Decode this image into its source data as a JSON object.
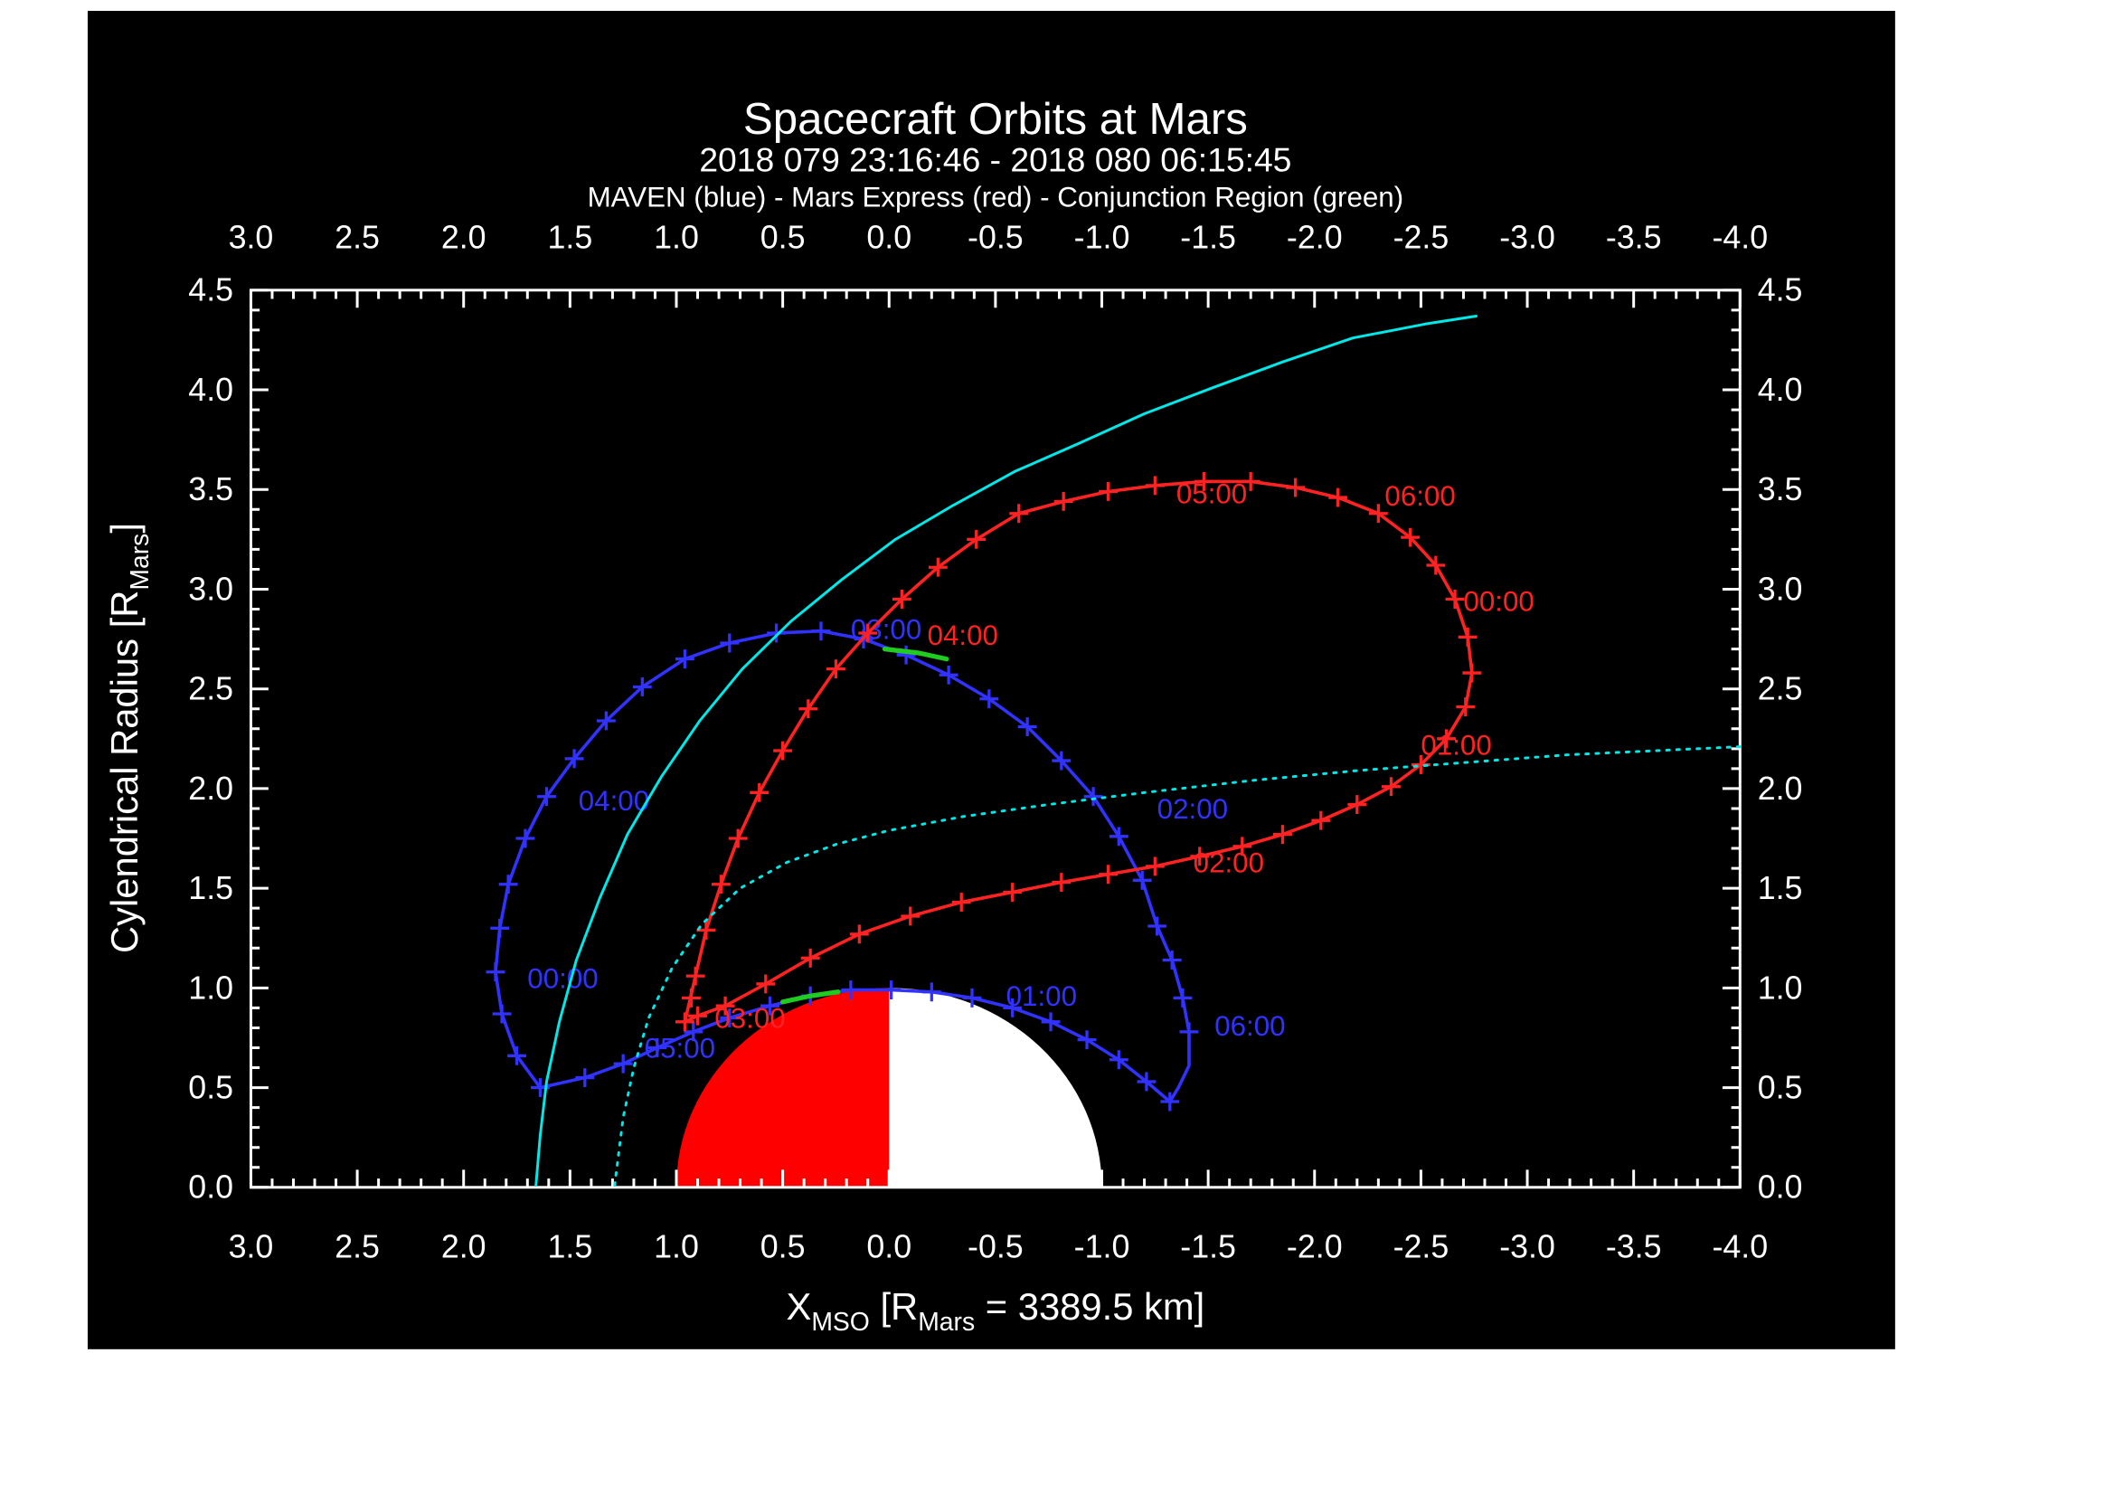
{
  "header": {
    "title": "Spacecraft Orbits at Mars",
    "subtitle": "2018 079 23:16:46 - 2018 080 06:15:45",
    "legend": "MAVEN (blue) - Mars Express (red) - Conjunction Region (green)"
  },
  "axes": {
    "x": {
      "p0": "X",
      "p1": "MSO",
      "p2": " [R",
      "p3": "Mars",
      "p4": " = 3389.5 km]"
    },
    "y": {
      "p0": "Cylendrical Radius [R",
      "p1": "Mars",
      "p2": "]"
    }
  },
  "colors": {
    "background": "#000000",
    "frame": "#ffffff",
    "maven": "#3232ff",
    "mars_express": "#ff2222",
    "boundaries": "#00e8e8",
    "conjunction": "#1fcc1f",
    "mars_dayside": "#ff0000",
    "mars_nightside": "#ffffff"
  },
  "chart_data": {
    "type": "line",
    "title": "Spacecraft Orbits at Mars",
    "subtitle": "2018 079 23:16:46 - 2018 080 06:15:45",
    "xlabel": "X_MSO [R_Mars = 3389.5 km]",
    "ylabel": "Cylendrical Radius [R_Mars]",
    "xlim": [
      3.0,
      -4.0
    ],
    "ylim": [
      0.0,
      4.5
    ],
    "x_ticks": [
      "3.0",
      "2.5",
      "2.0",
      "1.5",
      "1.0",
      "0.5",
      "0.0",
      "-0.5",
      "-1.0",
      "-1.5",
      "-2.0",
      "-2.5",
      "-3.0",
      "-3.5",
      "-4.0"
    ],
    "y_ticks": [
      "0.0",
      "0.5",
      "1.0",
      "1.5",
      "2.0",
      "2.5",
      "3.0",
      "3.5",
      "4.0",
      "4.5"
    ],
    "grid": false,
    "frame_color": "#ffffff",
    "background": "#000000",
    "mars": {
      "center_x": 0,
      "center_y": 0,
      "radius": 1.0,
      "dayside_color": "#ff0000",
      "nightside_color": "#ffffff"
    },
    "series": [
      {
        "id": "maven",
        "name": "MAVEN",
        "color": "#3232ff",
        "line_style": "solid",
        "line_width": 2.4,
        "points": [
          [
            1.64,
            0.5
          ],
          [
            1.75,
            0.66
          ],
          [
            1.82,
            0.87
          ],
          [
            1.85,
            1.08
          ],
          [
            1.83,
            1.3
          ],
          [
            1.79,
            1.52
          ],
          [
            1.71,
            1.75
          ],
          [
            1.61,
            1.96
          ],
          [
            1.48,
            2.15
          ],
          [
            1.33,
            2.34
          ],
          [
            1.16,
            2.51
          ],
          [
            0.96,
            2.65
          ],
          [
            0.75,
            2.73
          ],
          [
            0.53,
            2.78
          ],
          [
            0.32,
            2.79
          ],
          [
            0.12,
            2.75
          ],
          [
            -0.08,
            2.67
          ],
          [
            -0.28,
            2.57
          ],
          [
            -0.47,
            2.45
          ],
          [
            -0.65,
            2.31
          ],
          [
            -0.81,
            2.14
          ],
          [
            -0.96,
            1.96
          ],
          [
            -1.08,
            1.76
          ],
          [
            -1.19,
            1.54
          ],
          [
            -1.26,
            1.31
          ],
          [
            -1.33,
            1.14
          ],
          [
            -1.38,
            0.95
          ],
          [
            -1.41,
            0.78
          ],
          [
            -1.41,
            0.61
          ],
          [
            -1.36,
            0.5
          ],
          [
            -1.32,
            0.43
          ],
          [
            -1.21,
            0.53
          ],
          [
            -1.08,
            0.64
          ],
          [
            -0.93,
            0.74
          ],
          [
            -0.76,
            0.83
          ],
          [
            -0.58,
            0.9
          ],
          [
            -0.39,
            0.95
          ],
          [
            -0.2,
            0.98
          ],
          [
            -0.01,
            0.99
          ],
          [
            0.18,
            0.99
          ],
          [
            0.37,
            0.96
          ],
          [
            0.56,
            0.91
          ],
          [
            0.75,
            0.85
          ],
          [
            0.92,
            0.78
          ],
          [
            1.09,
            0.7
          ],
          [
            1.25,
            0.62
          ],
          [
            1.43,
            0.55
          ],
          [
            1.64,
            0.5
          ]
        ],
        "tick_points": [
          [
            1.82,
            0.87
          ],
          [
            1.85,
            1.08
          ],
          [
            1.83,
            1.3
          ],
          [
            1.79,
            1.52
          ],
          [
            1.71,
            1.75
          ],
          [
            1.61,
            1.96
          ],
          [
            1.48,
            2.15
          ],
          [
            1.33,
            2.34
          ],
          [
            1.16,
            2.51
          ],
          [
            0.96,
            2.65
          ],
          [
            0.75,
            2.73
          ],
          [
            0.53,
            2.78
          ],
          [
            0.32,
            2.79
          ],
          [
            0.12,
            2.75
          ],
          [
            -0.08,
            2.67
          ],
          [
            -0.28,
            2.57
          ],
          [
            -0.47,
            2.45
          ],
          [
            -0.65,
            2.31
          ],
          [
            -0.81,
            2.14
          ],
          [
            -0.96,
            1.96
          ],
          [
            -1.08,
            1.76
          ],
          [
            -1.19,
            1.54
          ],
          [
            -1.26,
            1.31
          ],
          [
            -1.33,
            1.14
          ],
          [
            -1.38,
            0.95
          ],
          [
            -1.41,
            0.78
          ],
          [
            -1.32,
            0.43
          ],
          [
            -1.21,
            0.53
          ],
          [
            -1.08,
            0.64
          ],
          [
            -0.93,
            0.74
          ],
          [
            -0.76,
            0.83
          ],
          [
            -0.58,
            0.9
          ],
          [
            -0.39,
            0.95
          ],
          [
            -0.2,
            0.98
          ],
          [
            -0.01,
            0.99
          ],
          [
            0.18,
            0.99
          ],
          [
            0.37,
            0.96
          ],
          [
            0.56,
            0.91
          ],
          [
            0.75,
            0.85
          ],
          [
            0.92,
            0.78
          ],
          [
            1.09,
            0.7
          ],
          [
            1.25,
            0.62
          ],
          [
            1.43,
            0.55
          ],
          [
            1.64,
            0.5
          ],
          [
            1.75,
            0.66
          ]
        ],
        "labels": [
          {
            "text": "00:00",
            "x": 1.7,
            "y": 1.0
          },
          {
            "text": "01:00",
            "x": -0.55,
            "y": 0.91
          },
          {
            "text": "02:00",
            "x": -1.26,
            "y": 1.85
          },
          {
            "text": "03:00",
            "x": 0.18,
            "y": 2.75
          },
          {
            "text": "04:00",
            "x": 1.46,
            "y": 1.89
          },
          {
            "text": "05:00",
            "x": 1.15,
            "y": 0.65
          },
          {
            "text": "06:00",
            "x": -1.53,
            "y": 0.76
          }
        ]
      },
      {
        "id": "mars-express",
        "name": "Mars Express",
        "color": "#ff2222",
        "line_style": "solid",
        "line_width": 2.4,
        "points": [
          [
            0.96,
            0.83
          ],
          [
            0.91,
            1.06
          ],
          [
            0.86,
            1.29
          ],
          [
            0.79,
            1.52
          ],
          [
            0.71,
            1.75
          ],
          [
            0.61,
            1.98
          ],
          [
            0.5,
            2.19
          ],
          [
            0.38,
            2.4
          ],
          [
            0.25,
            2.6
          ],
          [
            0.1,
            2.78
          ],
          [
            -0.06,
            2.95
          ],
          [
            -0.23,
            3.11
          ],
          [
            -0.41,
            3.25
          ],
          [
            -0.61,
            3.38
          ],
          [
            -0.82,
            3.44
          ],
          [
            -1.03,
            3.49
          ],
          [
            -1.25,
            3.52
          ],
          [
            -1.48,
            3.54
          ],
          [
            -1.7,
            3.54
          ],
          [
            -1.91,
            3.51
          ],
          [
            -2.11,
            3.46
          ],
          [
            -2.3,
            3.38
          ],
          [
            -2.45,
            3.26
          ],
          [
            -2.57,
            3.12
          ],
          [
            -2.66,
            2.95
          ],
          [
            -2.72,
            2.76
          ],
          [
            -2.74,
            2.58
          ],
          [
            -2.71,
            2.41
          ],
          [
            -2.62,
            2.25
          ],
          [
            -2.5,
            2.12
          ],
          [
            -2.36,
            2.01
          ],
          [
            -2.2,
            1.92
          ],
          [
            -2.03,
            1.84
          ],
          [
            -1.85,
            1.77
          ],
          [
            -1.66,
            1.71
          ],
          [
            -1.46,
            1.66
          ],
          [
            -1.25,
            1.61
          ],
          [
            -1.03,
            1.57
          ],
          [
            -0.81,
            1.53
          ],
          [
            -0.58,
            1.48
          ],
          [
            -0.34,
            1.43
          ],
          [
            -0.1,
            1.36
          ],
          [
            0.14,
            1.27
          ],
          [
            0.37,
            1.15
          ],
          [
            0.58,
            1.02
          ],
          [
            0.77,
            0.91
          ],
          [
            0.9,
            0.86
          ],
          [
            0.96,
            0.83
          ]
        ],
        "tick_points": [
          [
            0.96,
            0.83
          ],
          [
            0.93,
            0.95
          ],
          [
            0.91,
            1.06
          ],
          [
            0.86,
            1.29
          ],
          [
            0.79,
            1.52
          ],
          [
            0.71,
            1.75
          ],
          [
            0.61,
            1.98
          ],
          [
            0.5,
            2.19
          ],
          [
            0.38,
            2.4
          ],
          [
            0.25,
            2.6
          ],
          [
            0.1,
            2.78
          ],
          [
            -0.06,
            2.95
          ],
          [
            -0.23,
            3.11
          ],
          [
            -0.41,
            3.25
          ],
          [
            -0.61,
            3.38
          ],
          [
            -0.82,
            3.44
          ],
          [
            -1.03,
            3.49
          ],
          [
            -1.25,
            3.52
          ],
          [
            -1.48,
            3.54
          ],
          [
            -1.7,
            3.54
          ],
          [
            -1.91,
            3.51
          ],
          [
            -2.11,
            3.46
          ],
          [
            -2.3,
            3.38
          ],
          [
            -2.45,
            3.26
          ],
          [
            -2.57,
            3.12
          ],
          [
            -2.66,
            2.95
          ],
          [
            -2.72,
            2.76
          ],
          [
            -2.74,
            2.58
          ],
          [
            -2.71,
            2.41
          ],
          [
            -2.62,
            2.25
          ],
          [
            -2.5,
            2.12
          ],
          [
            -2.36,
            2.01
          ],
          [
            -2.2,
            1.92
          ],
          [
            -2.03,
            1.84
          ],
          [
            -1.85,
            1.77
          ],
          [
            -1.66,
            1.71
          ],
          [
            -1.46,
            1.66
          ],
          [
            -1.25,
            1.61
          ],
          [
            -1.03,
            1.57
          ],
          [
            -0.81,
            1.53
          ],
          [
            -0.58,
            1.48
          ],
          [
            -0.34,
            1.43
          ],
          [
            -0.1,
            1.36
          ],
          [
            0.14,
            1.27
          ],
          [
            0.37,
            1.15
          ],
          [
            0.58,
            1.02
          ],
          [
            0.77,
            0.91
          ],
          [
            0.9,
            0.86
          ]
        ],
        "labels": [
          {
            "text": "00:00",
            "x": -2.7,
            "y": 2.89
          },
          {
            "text": "01:00",
            "x": -2.5,
            "y": 2.17
          },
          {
            "text": "02:00",
            "x": -1.43,
            "y": 1.58
          },
          {
            "text": "03:00",
            "x": 0.82,
            "y": 0.8
          },
          {
            "text": "04:00",
            "x": -0.18,
            "y": 2.72
          },
          {
            "text": "05:00",
            "x": -1.35,
            "y": 3.43
          },
          {
            "text": "06:00",
            "x": -2.33,
            "y": 3.42
          }
        ]
      },
      {
        "id": "bow-shock",
        "color": "#00e8e8",
        "line_style": "solid",
        "line_width": 2.0,
        "points": [
          [
            1.66,
            0.01
          ],
          [
            1.64,
            0.26
          ],
          [
            1.61,
            0.53
          ],
          [
            1.55,
            0.83
          ],
          [
            1.47,
            1.14
          ],
          [
            1.36,
            1.45
          ],
          [
            1.23,
            1.77
          ],
          [
            1.07,
            2.06
          ],
          [
            0.89,
            2.34
          ],
          [
            0.69,
            2.6
          ],
          [
            0.46,
            2.84
          ],
          [
            0.22,
            3.05
          ],
          [
            -0.03,
            3.25
          ],
          [
            -0.3,
            3.42
          ],
          [
            -0.59,
            3.59
          ],
          [
            -0.89,
            3.73
          ],
          [
            -1.2,
            3.88
          ],
          [
            -1.52,
            4.01
          ],
          [
            -1.85,
            4.14
          ],
          [
            -2.18,
            4.26
          ],
          [
            -2.52,
            4.33
          ],
          [
            -2.76,
            4.37
          ]
        ],
        "labels": []
      },
      {
        "id": "boundary-dotted",
        "color": "#00e8e8",
        "line_style": "dotted",
        "line_width": 2.0,
        "points": [
          [
            1.29,
            0.01
          ],
          [
            1.25,
            0.35
          ],
          [
            1.2,
            0.6
          ],
          [
            1.13,
            0.85
          ],
          [
            1.02,
            1.1
          ],
          [
            0.88,
            1.32
          ],
          [
            0.7,
            1.5
          ],
          [
            0.48,
            1.63
          ],
          [
            0.25,
            1.72
          ],
          [
            0.0,
            1.79
          ],
          [
            -0.35,
            1.86
          ],
          [
            -0.75,
            1.92
          ],
          [
            -1.2,
            1.98
          ],
          [
            -1.7,
            2.04
          ],
          [
            -2.2,
            2.09
          ],
          [
            -2.7,
            2.13
          ],
          [
            -3.2,
            2.17
          ],
          [
            -3.6,
            2.19
          ],
          [
            -4.0,
            2.21
          ]
        ],
        "labels": []
      },
      {
        "id": "conjunction",
        "name": "Conjunction Region",
        "color": "#1fcc1f",
        "line_style": "solid",
        "line_width": 3.5,
        "segments": [
          [
            [
              0.5,
              0.93
            ],
            [
              0.37,
              0.96
            ],
            [
              0.24,
              0.98
            ]
          ],
          [
            [
              0.02,
              2.7
            ],
            [
              -0.14,
              2.68
            ],
            [
              -0.27,
              2.65
            ]
          ]
        ],
        "labels": []
      }
    ]
  }
}
